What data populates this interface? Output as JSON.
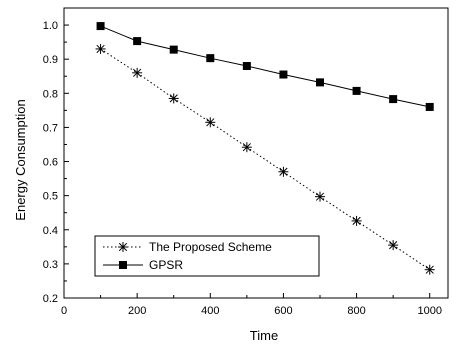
{
  "chart_data": {
    "type": "line",
    "title": "",
    "xlabel": "Time",
    "ylabel": "Energy Consumption",
    "xlim": [
      0,
      1050
    ],
    "ylim": [
      0.2,
      1.05
    ],
    "xticks": [
      0,
      200,
      400,
      600,
      800,
      1000
    ],
    "yticks": [
      0.2,
      0.3,
      0.4,
      0.5,
      0.6,
      0.7,
      0.8,
      0.9,
      1.0
    ],
    "grid": false,
    "legend_position": "lower-left",
    "x": [
      100,
      200,
      300,
      400,
      500,
      600,
      700,
      800,
      900,
      1000
    ],
    "series": [
      {
        "name": "The Proposed Scheme",
        "marker": "asterisk",
        "line_style": "dotted",
        "color": "#000000",
        "values": [
          0.93,
          0.86,
          0.785,
          0.715,
          0.642,
          0.57,
          0.497,
          0.426,
          0.355,
          0.283
        ]
      },
      {
        "name": "GPSR",
        "marker": "square",
        "line_style": "solid",
        "color": "#000000",
        "values": [
          0.997,
          0.953,
          0.928,
          0.903,
          0.88,
          0.855,
          0.832,
          0.807,
          0.783,
          0.76
        ]
      }
    ]
  }
}
